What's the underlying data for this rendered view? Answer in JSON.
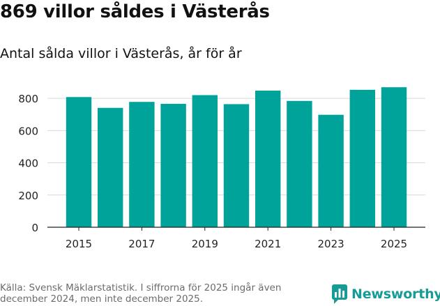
{
  "header": {
    "title": "869 villor såldes i Västerås",
    "subtitle": "Antal sålda villor i Västerås, år för år"
  },
  "footer": {
    "source": "Källa: Svensk Mäklarstatistik. I siffrorna för 2025 ingår även december 2024, men inte december 2025.",
    "logo_text": "Newsworthy"
  },
  "colors": {
    "bar": "#00a39a",
    "grid": "#d9d9d9",
    "axis": "#222222",
    "logo": "#179b96"
  },
  "chart_data": {
    "type": "bar",
    "title": "869 villor såldes i Västerås",
    "subtitle": "Antal sålda villor i Västerås, år för år",
    "xlabel": "",
    "ylabel": "",
    "categories": [
      "2015",
      "2016",
      "2017",
      "2018",
      "2019",
      "2020",
      "2021",
      "2022",
      "2023",
      "2024",
      "2025"
    ],
    "values": [
      808,
      741,
      778,
      766,
      820,
      764,
      848,
      784,
      698,
      853,
      869
    ],
    "x_tick_labels": [
      "2015",
      "2017",
      "2019",
      "2021",
      "2023",
      "2025"
    ],
    "y_ticks": [
      0,
      200,
      400,
      600,
      800
    ],
    "y_tick_labels": [
      "0",
      "200",
      "400",
      "600",
      "800"
    ],
    "ylim": [
      0,
      900
    ],
    "grid": true,
    "legend": "none"
  }
}
